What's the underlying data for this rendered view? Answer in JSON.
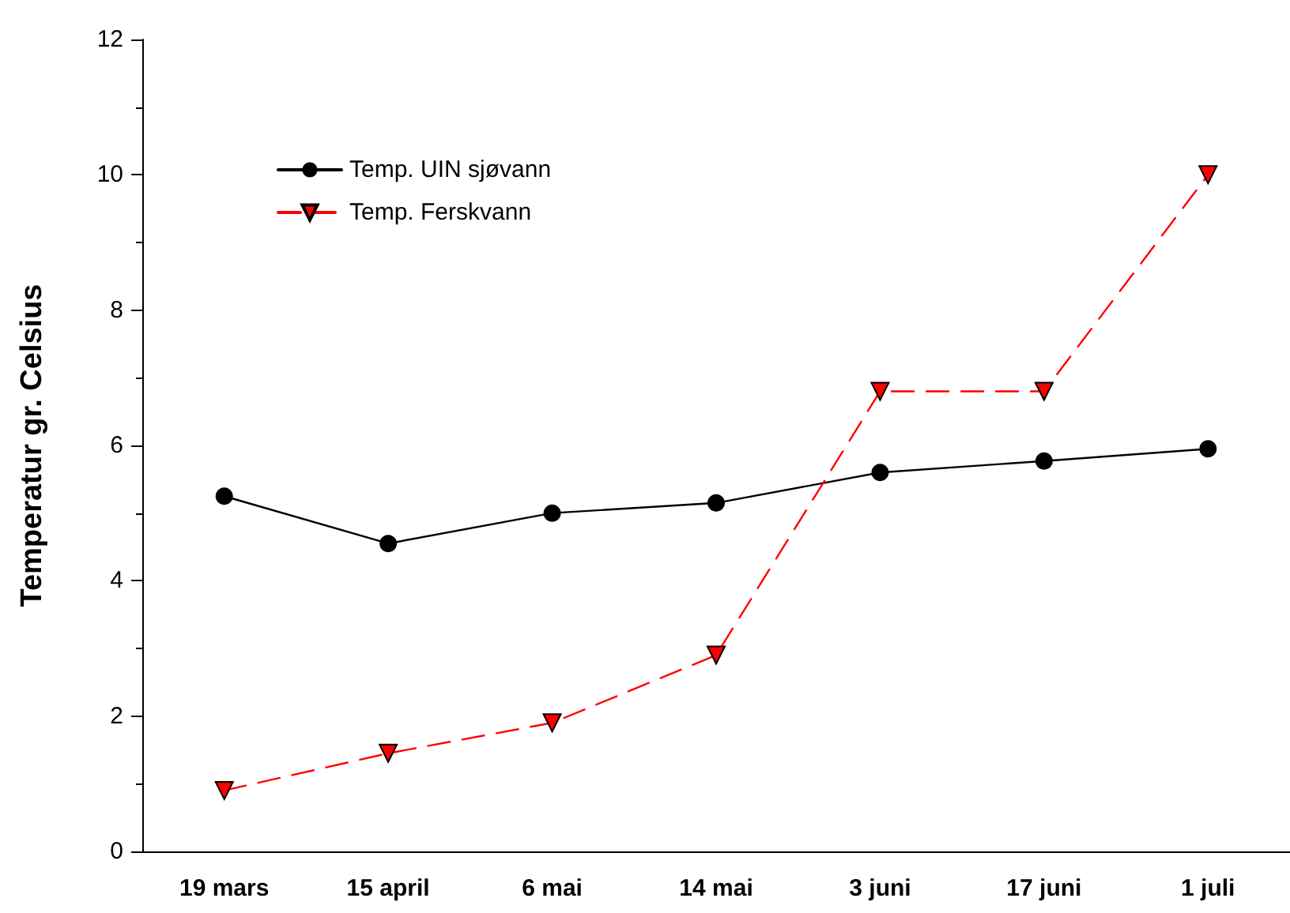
{
  "chart_data": {
    "type": "line",
    "ylabel": "Temperatur gr. Celsius",
    "categories": [
      "19 mars",
      "15 april",
      "6 mai",
      "14 mai",
      "3 juni",
      "17 juni",
      "1 juli"
    ],
    "series": [
      {
        "name": "Temp. UIN sjøvann",
        "color": "#000000",
        "marker": "circle",
        "line_style": "solid",
        "values": [
          5.25,
          4.55,
          5.0,
          5.15,
          5.6,
          5.77,
          5.95
        ]
      },
      {
        "name": "Temp. Ferskvann",
        "color": "#ff0000",
        "marker": "triangle",
        "line_style": "dashed",
        "values": [
          0.9,
          1.45,
          1.9,
          2.9,
          6.8,
          6.8,
          10.0
        ]
      }
    ],
    "ylim": [
      0,
      12
    ],
    "yticks": [
      0,
      2,
      4,
      6,
      8,
      10,
      12
    ],
    "grid": false,
    "legend": "top left"
  }
}
